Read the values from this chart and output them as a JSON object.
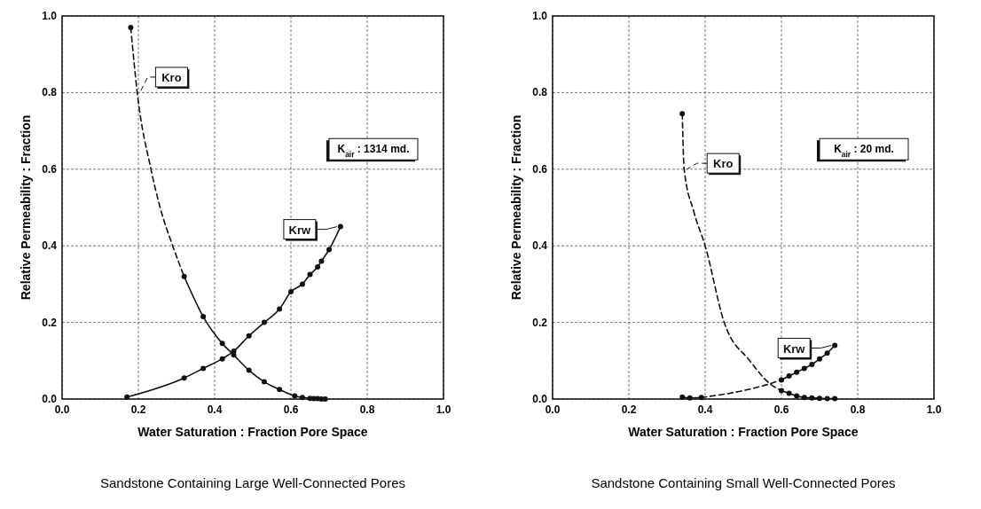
{
  "chart_data": [
    {
      "type": "line",
      "title": "Sandstone Containing Large Well-Connected Pores",
      "xlabel": "Water Saturation : Fraction Pore Space",
      "ylabel": "Relative Permeability : Fraction",
      "xlim": [
        0,
        1
      ],
      "ylim": [
        0,
        1
      ],
      "xticks": [
        {
          "value": 0,
          "label": "0.0"
        },
        {
          "value": 0.2,
          "label": "0.2"
        },
        {
          "value": 0.4,
          "label": "0.4"
        },
        {
          "value": 0.6,
          "label": "0.6"
        },
        {
          "value": 0.8,
          "label": "0.8"
        },
        {
          "value": 1,
          "label": "1.0"
        }
      ],
      "yticks": [
        {
          "value": 0,
          "label": "0.0"
        },
        {
          "value": 0.2,
          "label": "0.2"
        },
        {
          "value": 0.4,
          "label": "0.4"
        },
        {
          "value": 0.6,
          "label": "0.6"
        },
        {
          "value": 0.8,
          "label": "0.8"
        },
        {
          "value": 1,
          "label": "1.0"
        }
      ],
      "grid": true,
      "marker": "circle",
      "line_style": "solid",
      "annotations": [
        "K$_{air}$ : 1314 md."
      ],
      "series": [
        {
          "name": "Kro",
          "color": "#111111",
          "line_style": "dashed",
          "marker": "none",
          "x": [
            0.18,
            0.197,
            0.233,
            0.257,
            0.29,
            0.32
          ],
          "values": [
            0.97,
            0.8,
            0.6,
            0.5,
            0.4,
            0.32
          ]
        },
        {
          "type": "scatter",
          "color": "#111111",
          "x": [
            0.18
          ],
          "values": [
            0.97
          ]
        },
        {
          "color": "#111111",
          "x": [
            0.32,
            0.37,
            0.42,
            0.45,
            0.49,
            0.53,
            0.57,
            0.61,
            0.63,
            0.65,
            0.66,
            0.67,
            0.68,
            0.69
          ],
          "values": [
            0.32,
            0.215,
            0.145,
            0.115,
            0.075,
            0.045,
            0.025,
            0.008,
            0.004,
            0.002,
            0.001,
            0.001,
            0,
            0
          ]
        },
        {
          "name": "Krw",
          "color": "#111111",
          "x": [
            0.17,
            0.32,
            0.37,
            0.42,
            0.45,
            0.49,
            0.53,
            0.57,
            0.6,
            0.63,
            0.65,
            0.67,
            0.68,
            0.7,
            0.73
          ],
          "values": [
            0.005,
            0.055,
            0.08,
            0.105,
            0.125,
            0.165,
            0.2,
            0.235,
            0.28,
            0.3,
            0.325,
            0.345,
            0.36,
            0.39,
            0.45
          ]
        }
      ]
    },
    {
      "type": "line",
      "title": "Sandstone Containing Small Well-Connected Pores",
      "xlabel": "Water Saturation : Fraction Pore Space",
      "ylabel": "Relative Permeability : Fraction",
      "xlim": [
        0,
        1
      ],
      "ylim": [
        0,
        1
      ],
      "xticks": [
        {
          "value": 0,
          "label": "0.0"
        },
        {
          "value": 0.2,
          "label": "0.2"
        },
        {
          "value": 0.4,
          "label": "0.4"
        },
        {
          "value": 0.6,
          "label": "0.6"
        },
        {
          "value": 0.8,
          "label": "0.8"
        },
        {
          "value": 1,
          "label": "1.0"
        }
      ],
      "yticks": [
        {
          "value": 0,
          "label": "0.0"
        },
        {
          "value": 0.2,
          "label": "0.2"
        },
        {
          "value": 0.4,
          "label": "0.4"
        },
        {
          "value": 0.6,
          "label": "0.6"
        },
        {
          "value": 0.8,
          "label": "0.8"
        },
        {
          "value": 1,
          "label": "1.0"
        }
      ],
      "grid": true,
      "marker": "circle",
      "line_style": "solid",
      "annotations": [
        "K$_{air}$ : 20 md."
      ],
      "series": [
        {
          "name": "Kro",
          "color": "#111111",
          "line_style": "dashed",
          "marker": "none",
          "x": [
            0.34,
            0.345,
            0.37,
            0.4,
            0.45,
            0.517,
            0.57,
            0.6
          ],
          "values": [
            0.745,
            0.6,
            0.49,
            0.4,
            0.2,
            0.1,
            0.04,
            0.022
          ]
        },
        {
          "type": "scatter",
          "color": "#111111",
          "x": [
            0.34
          ],
          "values": [
            0.745
          ]
        },
        {
          "color": "#111111",
          "x": [
            0.6,
            0.62,
            0.64,
            0.66,
            0.68,
            0.7,
            0.72,
            0.74
          ],
          "values": [
            0.022,
            0.015,
            0.008,
            0.004,
            0.003,
            0.002,
            0.001,
            0.001
          ]
        },
        {
          "color": "#111111",
          "x": [
            0.34,
            0.36,
            0.39
          ],
          "values": [
            0.005,
            0.003,
            0.004
          ]
        },
        {
          "color": "#111111",
          "line_style": "dashed",
          "marker": "none",
          "x": [
            0.39,
            0.5,
            0.57,
            0.6
          ],
          "values": [
            0.004,
            0.022,
            0.04,
            0.05
          ]
        },
        {
          "name": "Krw",
          "color": "#111111",
          "x": [
            0.6,
            0.62,
            0.64,
            0.66,
            0.68,
            0.7,
            0.72,
            0.74
          ],
          "values": [
            0.05,
            0.06,
            0.07,
            0.08,
            0.09,
            0.105,
            0.12,
            0.14
          ]
        }
      ]
    }
  ]
}
